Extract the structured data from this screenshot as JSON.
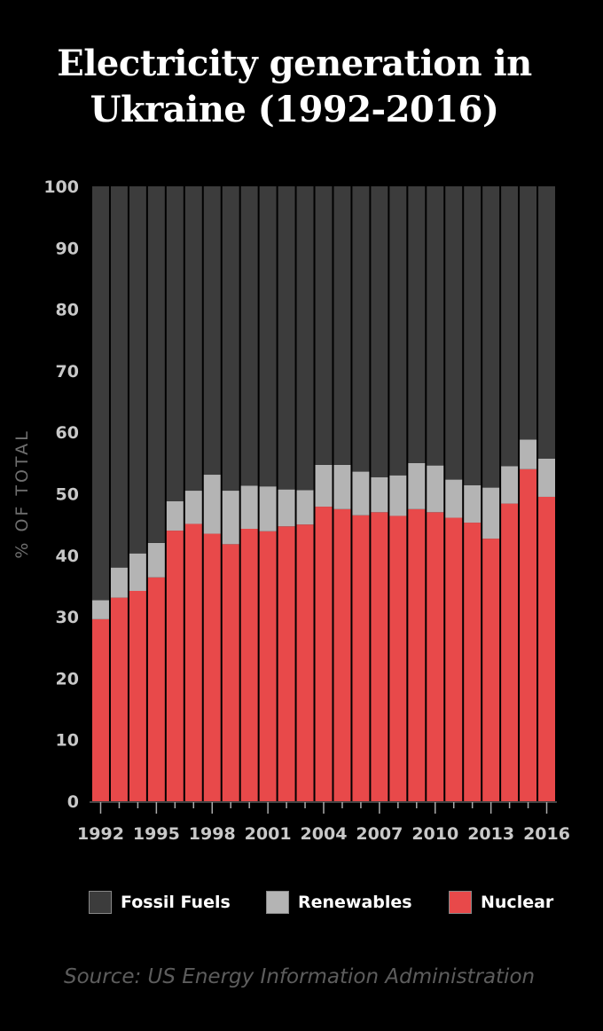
{
  "title_line1": "Electricity generation in",
  "title_line2": "Ukraine (1992-2016)",
  "source": "Source: US Energy Information Administration",
  "colors": {
    "fossil": "#3c3c3c",
    "renewables": "#b4b4b4",
    "nuclear": "#e8494a"
  },
  "legend": [
    {
      "key": "fossil",
      "label": "Fossil Fuels"
    },
    {
      "key": "renewables",
      "label": "Renewables"
    },
    {
      "key": "nuclear",
      "label": "Nuclear"
    }
  ],
  "chart_data": {
    "type": "bar",
    "stacked": true,
    "ylabel": "% OF TOTAL",
    "xlabel": "",
    "ylim": [
      0,
      100
    ],
    "yticks": [
      0,
      10,
      20,
      30,
      40,
      50,
      60,
      70,
      80,
      90,
      100
    ],
    "xtick_labels": [
      "1992",
      "1995",
      "1998",
      "2001",
      "2004",
      "2007",
      "2010",
      "2013",
      "2016"
    ],
    "categories": [
      "1992",
      "1993",
      "1994",
      "1995",
      "1996",
      "1997",
      "1998",
      "1999",
      "2000",
      "2001",
      "2002",
      "2003",
      "2004",
      "2005",
      "2006",
      "2007",
      "2008",
      "2009",
      "2010",
      "2011",
      "2012",
      "2013",
      "2014",
      "2015",
      "2016"
    ],
    "series": [
      {
        "name": "Nuclear",
        "key": "nuclear",
        "values": [
          29.6,
          33.1,
          34.2,
          36.4,
          44.0,
          45.1,
          43.5,
          41.8,
          44.3,
          43.9,
          44.7,
          45.0,
          47.9,
          47.5,
          46.5,
          47.0,
          46.4,
          47.5,
          47.0,
          46.1,
          45.3,
          42.7,
          48.4,
          54.0,
          49.5
        ]
      },
      {
        "name": "Renewables",
        "key": "renewables",
        "values": [
          3.1,
          4.9,
          6.1,
          5.6,
          4.8,
          5.4,
          9.6,
          8.7,
          7.0,
          7.3,
          6.0,
          5.6,
          6.8,
          7.2,
          7.1,
          5.7,
          6.6,
          7.5,
          7.6,
          6.2,
          6.1,
          8.3,
          6.1,
          4.8,
          6.2
        ]
      },
      {
        "name": "Fossil Fuels",
        "key": "fossil",
        "values": [
          67.3,
          62.0,
          59.7,
          58.0,
          51.2,
          49.5,
          46.9,
          49.5,
          48.7,
          48.8,
          49.3,
          49.4,
          45.3,
          45.3,
          46.4,
          47.3,
          47.0,
          45.0,
          45.4,
          47.7,
          48.6,
          49.0,
          45.5,
          41.2,
          44.3
        ]
      }
    ]
  }
}
